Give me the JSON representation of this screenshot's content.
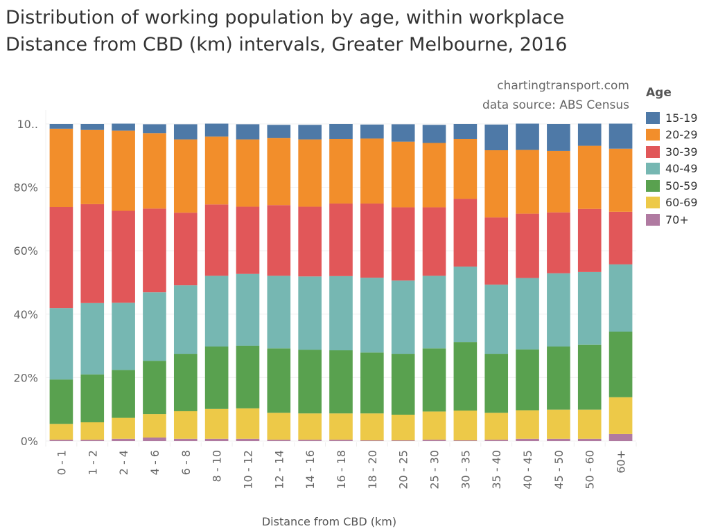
{
  "title": "Distribution of working population by age, within workplace Distance from CBD (km) intervals, Greater Melbourne, 2016",
  "credit_site": "chartingtransport.com",
  "credit_source": "data source: ABS Census",
  "legend": {
    "title": "Age",
    "items": [
      {
        "label": "15-19",
        "color": "#4e79a7"
      },
      {
        "label": "20-29",
        "color": "#f28e2b"
      },
      {
        "label": "30-39",
        "color": "#e15759"
      },
      {
        "label": "40-49",
        "color": "#76b7b2"
      },
      {
        "label": "50-59",
        "color": "#59a14f"
      },
      {
        "label": "60-69",
        "color": "#edc948"
      },
      {
        "label": "70+",
        "color": "#b07aa1"
      }
    ]
  },
  "chart_data": {
    "type": "bar",
    "stacked": true,
    "normalized": true,
    "title": "Distribution of working population by age, within workplace Distance from CBD (km) intervals, Greater Melbourne, 2016",
    "xlabel": "Distance from CBD (km)",
    "ylabel": "",
    "ylim": [
      0,
      100
    ],
    "yticks": [
      "0%",
      "20%",
      "40%",
      "60%",
      "80%",
      "10.."
    ],
    "ytick_values": [
      0,
      20,
      40,
      60,
      80,
      100
    ],
    "grid": true,
    "legend_position": "right",
    "categories": [
      "0 - 1",
      "1 - 2",
      "2 - 4",
      "4 - 6",
      "6 - 8",
      "8 - 10",
      "10 - 12",
      "12 - 14",
      "14 - 16",
      "16 - 18",
      "18 - 20",
      "20 - 25",
      "25 - 30",
      "30 - 35",
      "35 - 40",
      "40 - 45",
      "45 - 50",
      "50 - 60",
      "60+"
    ],
    "series": [
      {
        "name": "70+",
        "color": "#b07aa1",
        "values": [
          0.4,
          0.4,
          0.7,
          1.1,
          0.7,
          0.7,
          0.7,
          0.4,
          0.4,
          0.4,
          0.2,
          0.2,
          0.4,
          0.2,
          0.4,
          0.7,
          0.7,
          0.7,
          2.2
        ]
      },
      {
        "name": "60-69",
        "color": "#edc948",
        "values": [
          5.0,
          5.5,
          6.6,
          7.4,
          8.7,
          9.4,
          9.6,
          8.5,
          8.3,
          8.3,
          8.5,
          8.1,
          8.9,
          9.4,
          8.5,
          9.0,
          9.2,
          9.2,
          11.6
        ]
      },
      {
        "name": "50-59",
        "color": "#59a14f",
        "values": [
          14.0,
          15.1,
          15.1,
          16.8,
          18.1,
          19.7,
          19.7,
          20.3,
          20.1,
          19.9,
          19.2,
          19.2,
          19.9,
          21.6,
          18.6,
          19.2,
          19.9,
          20.5,
          20.7
        ]
      },
      {
        "name": "40-49",
        "color": "#76b7b2",
        "values": [
          22.5,
          22.5,
          21.2,
          21.6,
          21.6,
          22.3,
          22.7,
          22.9,
          23.1,
          23.4,
          23.6,
          23.1,
          22.9,
          23.8,
          21.8,
          22.5,
          23.1,
          22.9,
          21.2
        ]
      },
      {
        "name": "30-39",
        "color": "#e15759",
        "values": [
          31.9,
          31.2,
          29.0,
          26.4,
          22.9,
          22.5,
          21.2,
          22.3,
          22.0,
          22.9,
          23.4,
          23.1,
          21.6,
          21.4,
          21.2,
          20.3,
          19.2,
          19.9,
          16.6
        ]
      },
      {
        "name": "20-29",
        "color": "#f28e2b",
        "values": [
          24.7,
          23.4,
          25.3,
          23.8,
          23.1,
          21.4,
          21.2,
          21.2,
          21.2,
          20.3,
          20.5,
          20.7,
          20.3,
          18.8,
          21.2,
          20.1,
          19.4,
          19.9,
          19.9
        ]
      },
      {
        "name": "15-19",
        "color": "#4e79a7",
        "values": [
          1.5,
          1.9,
          2.2,
          2.8,
          4.8,
          4.1,
          4.8,
          4.1,
          4.6,
          4.8,
          4.4,
          5.5,
          5.7,
          4.8,
          8.1,
          8.3,
          8.5,
          7.0,
          7.9
        ]
      }
    ]
  }
}
